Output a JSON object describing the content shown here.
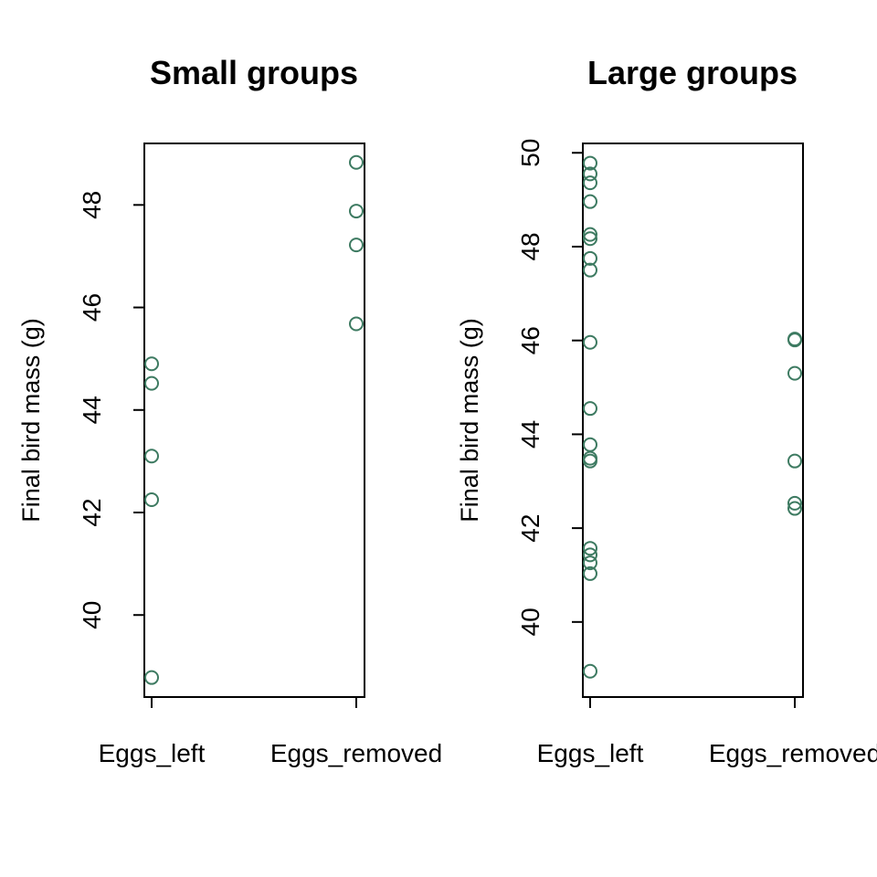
{
  "colors": {
    "point": "#3d7a61"
  },
  "chart_data": [
    {
      "type": "scatter",
      "title": "Small groups",
      "xlabel": "",
      "ylabel": "Final bird mass (g)",
      "categories": [
        "Eggs_left",
        "Eggs_removed"
      ],
      "ylim": [
        38.4,
        49.2
      ],
      "yticks": [
        40,
        42,
        44,
        46,
        48
      ],
      "series": [
        {
          "category": "Eggs_left",
          "values": [
            44.9,
            44.52,
            43.1,
            42.25,
            38.78
          ]
        },
        {
          "category": "Eggs_removed",
          "values": [
            48.83,
            47.88,
            47.22,
            45.68
          ]
        }
      ]
    },
    {
      "type": "scatter",
      "title": "Large groups",
      "xlabel": "",
      "ylabel": "Final bird mass (g)",
      "categories": [
        "Eggs_left",
        "Eggs_removed"
      ],
      "ylim": [
        38.4,
        50.2
      ],
      "yticks": [
        40,
        42,
        44,
        46,
        48,
        50
      ],
      "series": [
        {
          "category": "Eggs_left",
          "values": [
            49.78,
            49.55,
            49.36,
            48.96,
            48.26,
            48.17,
            47.75,
            47.5,
            45.96,
            44.55,
            43.78,
            43.49,
            43.43,
            41.57,
            41.43,
            41.26,
            41.03,
            38.95
          ]
        },
        {
          "category": "Eggs_removed",
          "values": [
            46.03,
            46.01,
            45.3,
            43.43,
            42.53,
            42.42
          ]
        }
      ]
    }
  ]
}
